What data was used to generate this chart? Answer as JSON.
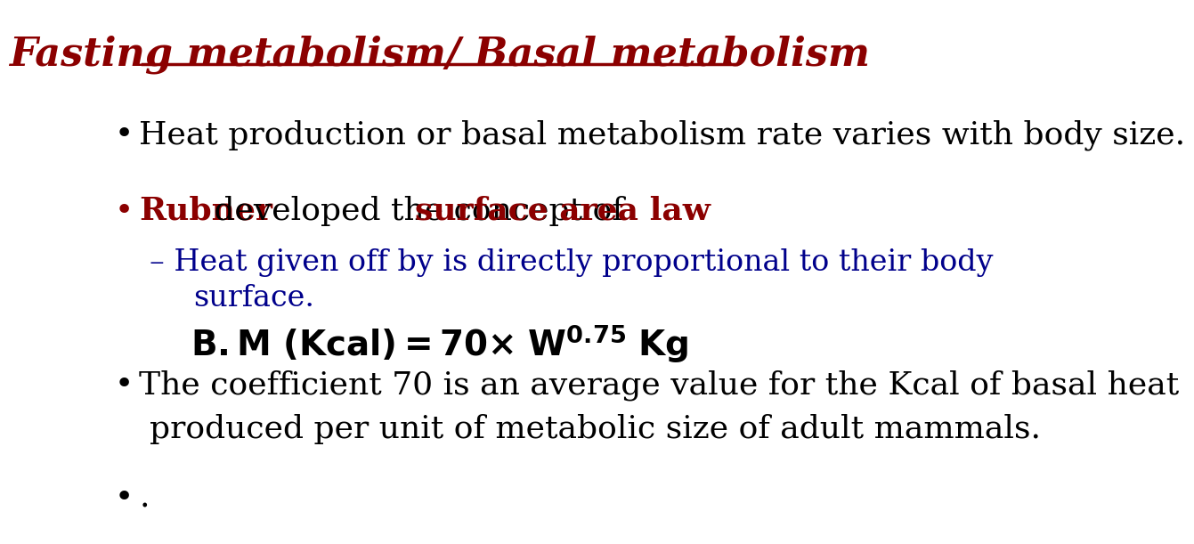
{
  "title": "Fasting metabolism/ Basal metabolism",
  "title_color": "#8B0000",
  "title_fontsize": 32,
  "bg_color": "#FFFFFF",
  "bullet1": "Heat production or basal metabolism rate varies with body size.",
  "bullet1_color": "#000000",
  "bullet2_part1": "Rubner",
  "bullet2_part1_color": "#8B0000",
  "bullet2_part2": " developed the concept of ",
  "bullet2_part2_color": "#000000",
  "bullet2_part3": "surface area law",
  "bullet2_part3_color": "#8B0000",
  "sub_bullet_color": "#00008B",
  "sub_bullet_line1": "– Heat given off by is directly proportional to their body",
  "sub_bullet_line2": "surface.",
  "formula_color": "#000000",
  "bullet3_color": "#000000",
  "bullet3_line1": "The coefficient 70 is an average value for the Kcal of basal heat",
  "bullet3_line2": "produced per unit of metabolic size of adult mammals.",
  "bullet4": ".",
  "bullet_fontsize": 26,
  "sub_fontsize": 24,
  "formula_fontsize": 28
}
